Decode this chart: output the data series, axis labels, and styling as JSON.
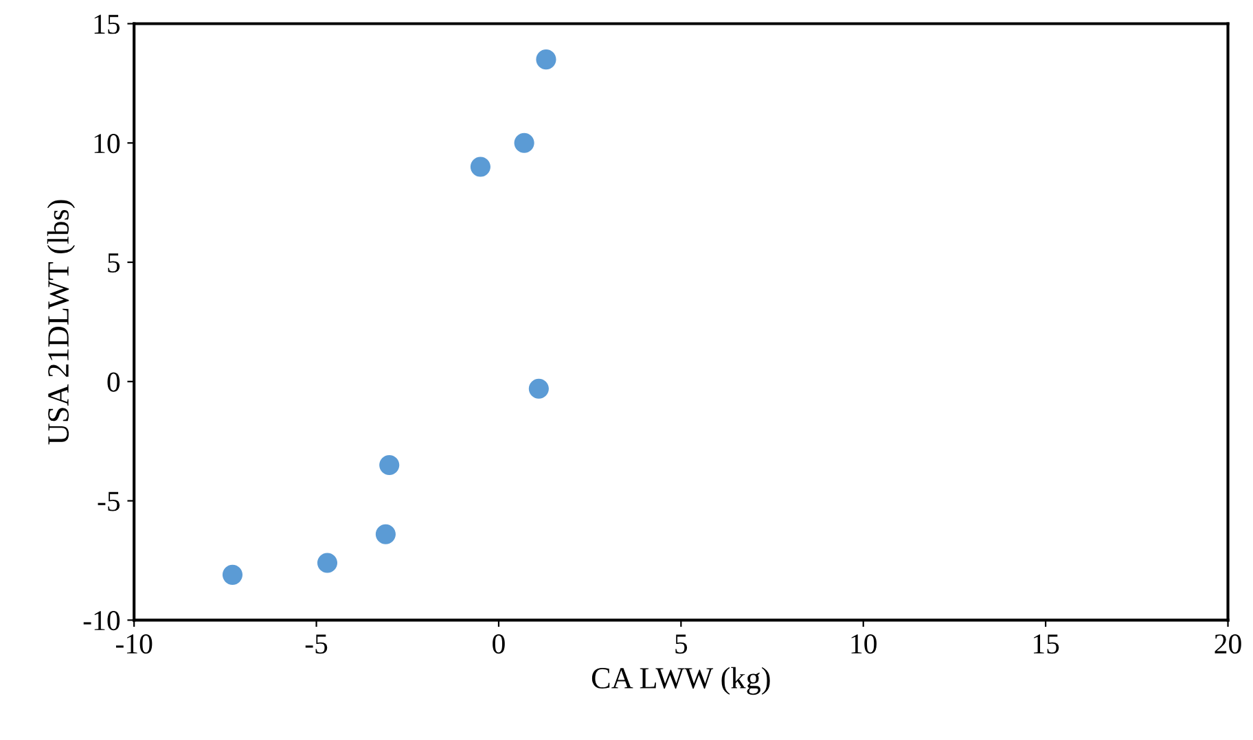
{
  "chart_data": {
    "type": "scatter",
    "xlabel": "CA LWW (kg)",
    "ylabel": "USA 21DLWT (lbs)",
    "x": [
      1.3,
      0.7,
      -0.5,
      1.1,
      -3.0,
      -3.1,
      -4.7,
      -7.3
    ],
    "series": [
      {
        "color": "#5b9bd5",
        "values": [
          13.5,
          10.0,
          9.0,
          -0.3,
          -3.5,
          -6.4,
          -7.6,
          -8.1
        ]
      }
    ],
    "xlim": [
      -10,
      20
    ],
    "xticks": [
      -10,
      -5,
      0,
      5,
      10,
      15,
      20
    ],
    "ylim": [
      -10,
      15
    ],
    "yticks": [
      -10,
      -5,
      0,
      5,
      10,
      15
    ],
    "grid": false,
    "legend": false,
    "marker": "circle"
  }
}
